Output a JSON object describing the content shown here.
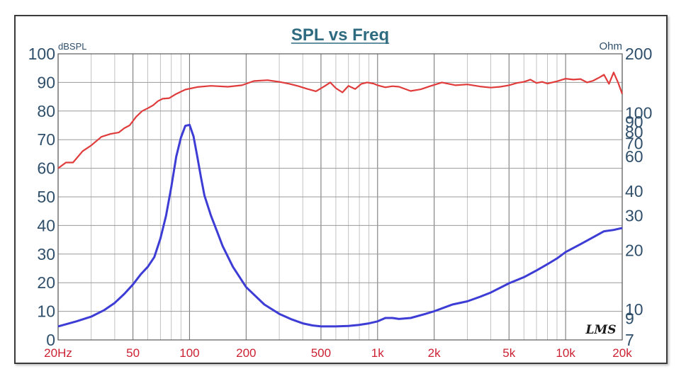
{
  "chart_data": {
    "type": "line",
    "title": "SPL vs Freq",
    "left_axis": {
      "unit_label": "dBSPL",
      "ylim": [
        0,
        100
      ],
      "ticks": [
        "0",
        "10",
        "20",
        "30",
        "40",
        "50",
        "60",
        "70",
        "80",
        "90",
        "100"
      ]
    },
    "right_axis": {
      "unit_label": "Ohm",
      "scale": "log",
      "ylim": [
        7,
        200
      ],
      "ticks": [
        "7",
        "9",
        "10",
        "20",
        "30",
        "40",
        "60",
        "70",
        "80",
        "90",
        "100",
        "200"
      ]
    },
    "x_axis": {
      "scale": "log",
      "xlim": [
        20,
        20000
      ],
      "ticks": [
        {
          "value": 20,
          "label": "20Hz"
        },
        {
          "value": 50,
          "label": "50"
        },
        {
          "value": 100,
          "label": "100"
        },
        {
          "value": 200,
          "label": "200"
        },
        {
          "value": 500,
          "label": "500"
        },
        {
          "value": 1000,
          "label": "1k"
        },
        {
          "value": 2000,
          "label": "2k"
        },
        {
          "value": 5000,
          "label": "5k"
        },
        {
          "value": 10000,
          "label": "10k"
        },
        {
          "value": 20000,
          "label": "20k"
        }
      ]
    },
    "grid": true,
    "logo_text": "LMS",
    "series": [
      {
        "axis": "left",
        "color": "#e03c3c",
        "x": [
          20,
          22,
          24,
          27,
          30,
          34,
          38,
          42,
          45,
          48,
          52,
          56,
          60,
          64,
          68,
          72,
          78,
          85,
          95,
          110,
          130,
          160,
          190,
          220,
          260,
          300,
          340,
          380,
          420,
          470,
          520,
          560,
          600,
          650,
          700,
          760,
          820,
          880,
          950,
          1000,
          1100,
          1200,
          1300,
          1500,
          1700,
          1900,
          2200,
          2600,
          3000,
          3500,
          4000,
          4500,
          5000,
          5500,
          6000,
          6500,
          7000,
          7500,
          8000,
          9000,
          10000,
          11000,
          12000,
          13000,
          14000,
          15000,
          16000,
          17000,
          18000,
          19000,
          20000
        ],
        "values": [
          60,
          62,
          62,
          66,
          68,
          71,
          72,
          72.5,
          74,
          75,
          78,
          80,
          81,
          82,
          83.5,
          84.3,
          84.5,
          86,
          87.5,
          88.4,
          88.8,
          88.5,
          89,
          90.5,
          90.8,
          90.2,
          89.5,
          88.7,
          87.8,
          86.9,
          88.6,
          90,
          88,
          86.5,
          88.8,
          87.7,
          89.5,
          90,
          89.6,
          89,
          88.3,
          88.7,
          88.5,
          87,
          87.6,
          88.7,
          90,
          89,
          89.3,
          88.6,
          88.2,
          88.5,
          89,
          89.8,
          90.2,
          91,
          89.8,
          90.2,
          89.6,
          90.4,
          91.3,
          91,
          91.2,
          90,
          90.6,
          91.6,
          92.7,
          89.5,
          93.5,
          90,
          86
        ]
      },
      {
        "axis": "right",
        "color": "#3d3dd6",
        "x": [
          20,
          25,
          30,
          35,
          40,
          45,
          50,
          55,
          60,
          65,
          70,
          75,
          80,
          85,
          90,
          95,
          100,
          105,
          110,
          115,
          120,
          130,
          140,
          150,
          170,
          200,
          250,
          300,
          350,
          400,
          450,
          500,
          550,
          600,
          700,
          800,
          900,
          1000,
          1100,
          1200,
          1300,
          1500,
          1800,
          2000,
          2500,
          3000,
          3500,
          4000,
          5000,
          6000,
          7000,
          8000,
          9000,
          10000,
          12000,
          14000,
          16000,
          18000,
          20000
        ],
        "values": [
          8.2,
          8.7,
          9.2,
          9.9,
          10.8,
          12.0,
          13.4,
          15.1,
          16.5,
          18.5,
          23,
          30,
          42,
          60,
          75,
          86,
          87,
          76,
          60,
          47,
          38,
          30,
          25,
          21,
          16.5,
          13,
          10.6,
          9.5,
          8.9,
          8.5,
          8.3,
          8.2,
          8.2,
          8.2,
          8.25,
          8.35,
          8.5,
          8.7,
          9.05,
          9.05,
          8.95,
          9.05,
          9.5,
          9.8,
          10.6,
          11.0,
          11.6,
          12.2,
          13.6,
          14.6,
          15.8,
          17.0,
          18.2,
          19.6,
          21.5,
          23.3,
          25.0,
          25.4,
          26.0
        ]
      }
    ]
  }
}
